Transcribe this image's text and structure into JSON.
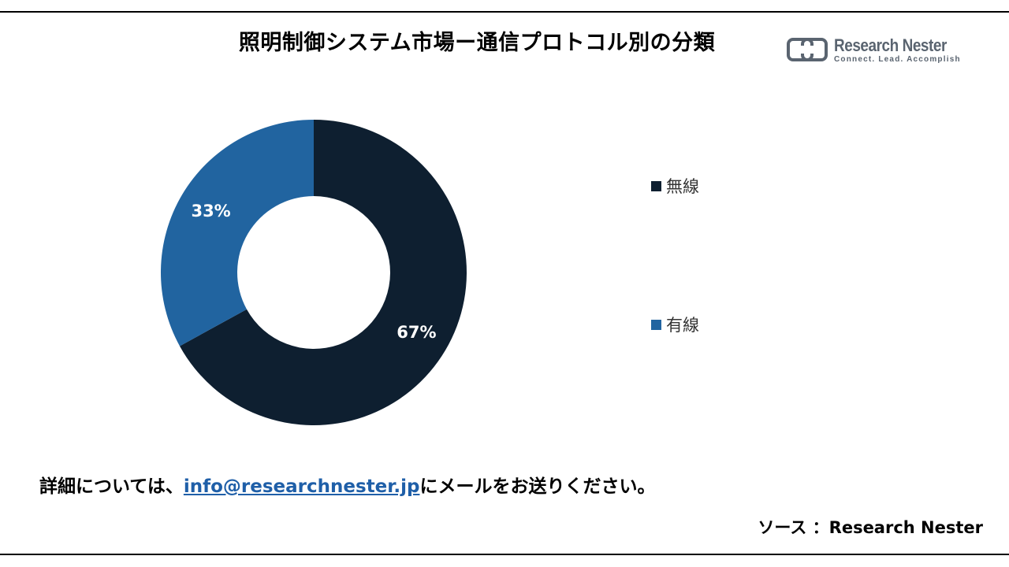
{
  "title": "照明制御システム市場ー通信プロトコル別の分類",
  "logo": {
    "name": "Research Nester",
    "tagline": "Connect. Lead. Accomplish"
  },
  "chart_data": {
    "type": "pie",
    "variant": "donut",
    "title": "照明制御システム市場ー通信プロトコル別の分類",
    "legend_position": "right",
    "slices": [
      {
        "label": "無線",
        "value": 67,
        "display": "67%",
        "color": "#0e1f30"
      },
      {
        "label": "有線",
        "value": 33,
        "display": "33%",
        "color": "#2164a0"
      }
    ]
  },
  "footer": {
    "note_prefix": "詳細については、",
    "email": "info@researchnester.jp",
    "note_suffix": "にメールをお送りください。",
    "source": "ソース ：Research Nester"
  }
}
